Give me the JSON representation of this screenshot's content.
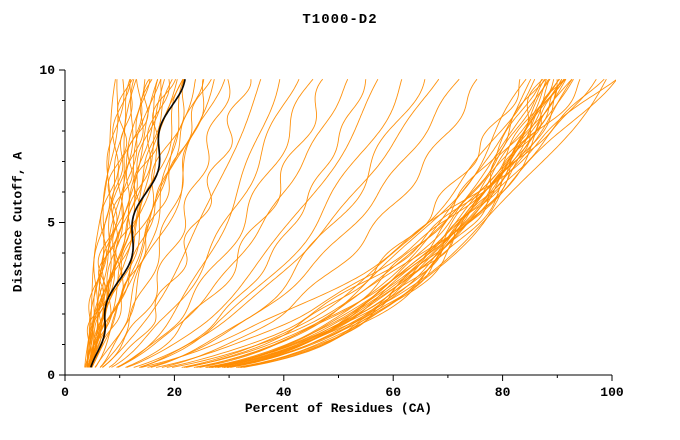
{
  "chart_data": {
    "type": "line",
    "title": "T1000-D2",
    "xlabel": "Percent of Residues (CA)",
    "ylabel": "Distance Cutoff, A",
    "xlim": [
      0,
      100
    ],
    "ylim": [
      0,
      10
    ],
    "x_ticks": [
      0,
      20,
      40,
      60,
      80,
      100
    ],
    "x_minor_ticks": [
      10,
      30,
      50,
      70,
      90
    ],
    "y_ticks": [
      0,
      5,
      10
    ],
    "y_minor_ticks": [
      1,
      2,
      3,
      4,
      6,
      7,
      8,
      9
    ],
    "y_start": 0.25,
    "y_end": 9.7,
    "grid": false,
    "legend": "none",
    "model_color": "#ff8c00",
    "highlight_color": "#000000",
    "series_note": "each model curve given as [percent_at_cutoff0, percent_at_cutoff10, shape_exponent] for x(y)=x0+(x1-x0)*(y/9.7)^shape",
    "highlight": [
      4.2,
      21,
      0.95
    ],
    "series": [
      [
        3.5,
        9.5,
        1.1
      ],
      [
        3.8,
        10,
        0.95
      ],
      [
        4.0,
        10.5,
        1.2
      ],
      [
        3.6,
        11,
        1.0
      ],
      [
        4.2,
        11.5,
        0.9
      ],
      [
        3.9,
        12,
        1.15
      ],
      [
        4.1,
        12.5,
        1.0
      ],
      [
        3.7,
        13,
        0.85
      ],
      [
        4.3,
        13.5,
        1.05
      ],
      [
        4.0,
        14,
        0.95
      ],
      [
        3.8,
        14.5,
        1.1
      ],
      [
        4.2,
        15,
        0.9
      ],
      [
        4.4,
        15.5,
        1.0
      ],
      [
        3.6,
        16,
        1.2
      ],
      [
        4.0,
        16.5,
        0.85
      ],
      [
        4.1,
        17,
        1.0
      ],
      [
        3.9,
        17.5,
        0.95
      ],
      [
        4.3,
        18,
        1.1
      ],
      [
        4.0,
        18.5,
        0.9
      ],
      [
        4.2,
        19,
        1.0
      ],
      [
        3.8,
        19.5,
        1.05
      ],
      [
        4.1,
        20,
        0.95
      ],
      [
        4.4,
        21,
        1.0
      ],
      [
        3.9,
        22,
        0.9
      ],
      [
        4.2,
        23,
        1.0
      ],
      [
        4.0,
        24,
        0.85
      ],
      [
        4.3,
        25,
        0.95
      ],
      [
        4.1,
        26,
        0.9
      ],
      [
        3.7,
        27,
        1.0
      ],
      [
        4.2,
        28,
        0.8
      ],
      [
        4.0,
        18,
        0.6
      ],
      [
        4.0,
        22,
        0.55
      ],
      [
        4.0,
        26,
        0.6
      ],
      [
        4.0,
        30,
        0.6
      ],
      [
        4.2,
        33,
        0.55
      ],
      [
        3.8,
        36,
        0.65
      ],
      [
        4.1,
        39,
        0.5
      ],
      [
        4.3,
        42,
        0.6
      ],
      [
        3.9,
        45,
        0.55
      ],
      [
        4.0,
        48,
        0.5
      ],
      [
        4.2,
        52,
        0.6
      ],
      [
        3.8,
        55,
        0.45
      ],
      [
        4.1,
        58,
        0.55
      ],
      [
        4.3,
        62,
        0.5
      ],
      [
        3.9,
        65,
        0.45
      ],
      [
        4.0,
        68,
        0.55
      ],
      [
        4.2,
        72,
        0.5
      ],
      [
        3.8,
        76,
        0.45
      ],
      [
        3.5,
        84,
        0.4
      ],
      [
        3.8,
        85,
        0.38
      ],
      [
        4.0,
        85.5,
        0.35
      ],
      [
        3.6,
        86,
        0.42
      ],
      [
        4.1,
        86.5,
        0.33
      ],
      [
        3.9,
        87,
        0.38
      ],
      [
        4.2,
        87.5,
        0.3
      ],
      [
        3.7,
        88,
        0.36
      ],
      [
        4.0,
        88.5,
        0.4
      ],
      [
        3.8,
        89,
        0.32
      ],
      [
        4.1,
        89.5,
        0.35
      ],
      [
        3.9,
        90,
        0.3
      ],
      [
        4.2,
        90.5,
        0.38
      ],
      [
        3.6,
        91,
        0.33
      ],
      [
        4.0,
        91.5,
        0.36
      ],
      [
        3.8,
        92,
        0.31
      ],
      [
        4.1,
        92.5,
        0.34
      ],
      [
        3.9,
        93,
        0.37
      ],
      [
        3.7,
        88.5,
        0.33
      ],
      [
        4.0,
        89.2,
        0.36
      ],
      [
        3.9,
        90.2,
        0.31
      ],
      [
        4.1,
        90.8,
        0.34
      ],
      [
        3.8,
        91.3,
        0.37
      ],
      [
        4.0,
        89.8,
        0.33
      ],
      [
        3.9,
        90.5,
        0.35
      ],
      [
        4.1,
        91.8,
        0.32
      ],
      [
        4.0,
        95,
        0.5
      ],
      [
        3.8,
        97,
        0.45
      ],
      [
        4.1,
        98,
        0.55
      ],
      [
        3.9,
        99,
        0.4
      ],
      [
        4.2,
        100,
        0.5
      ],
      [
        4.0,
        100,
        0.62
      ]
    ]
  }
}
